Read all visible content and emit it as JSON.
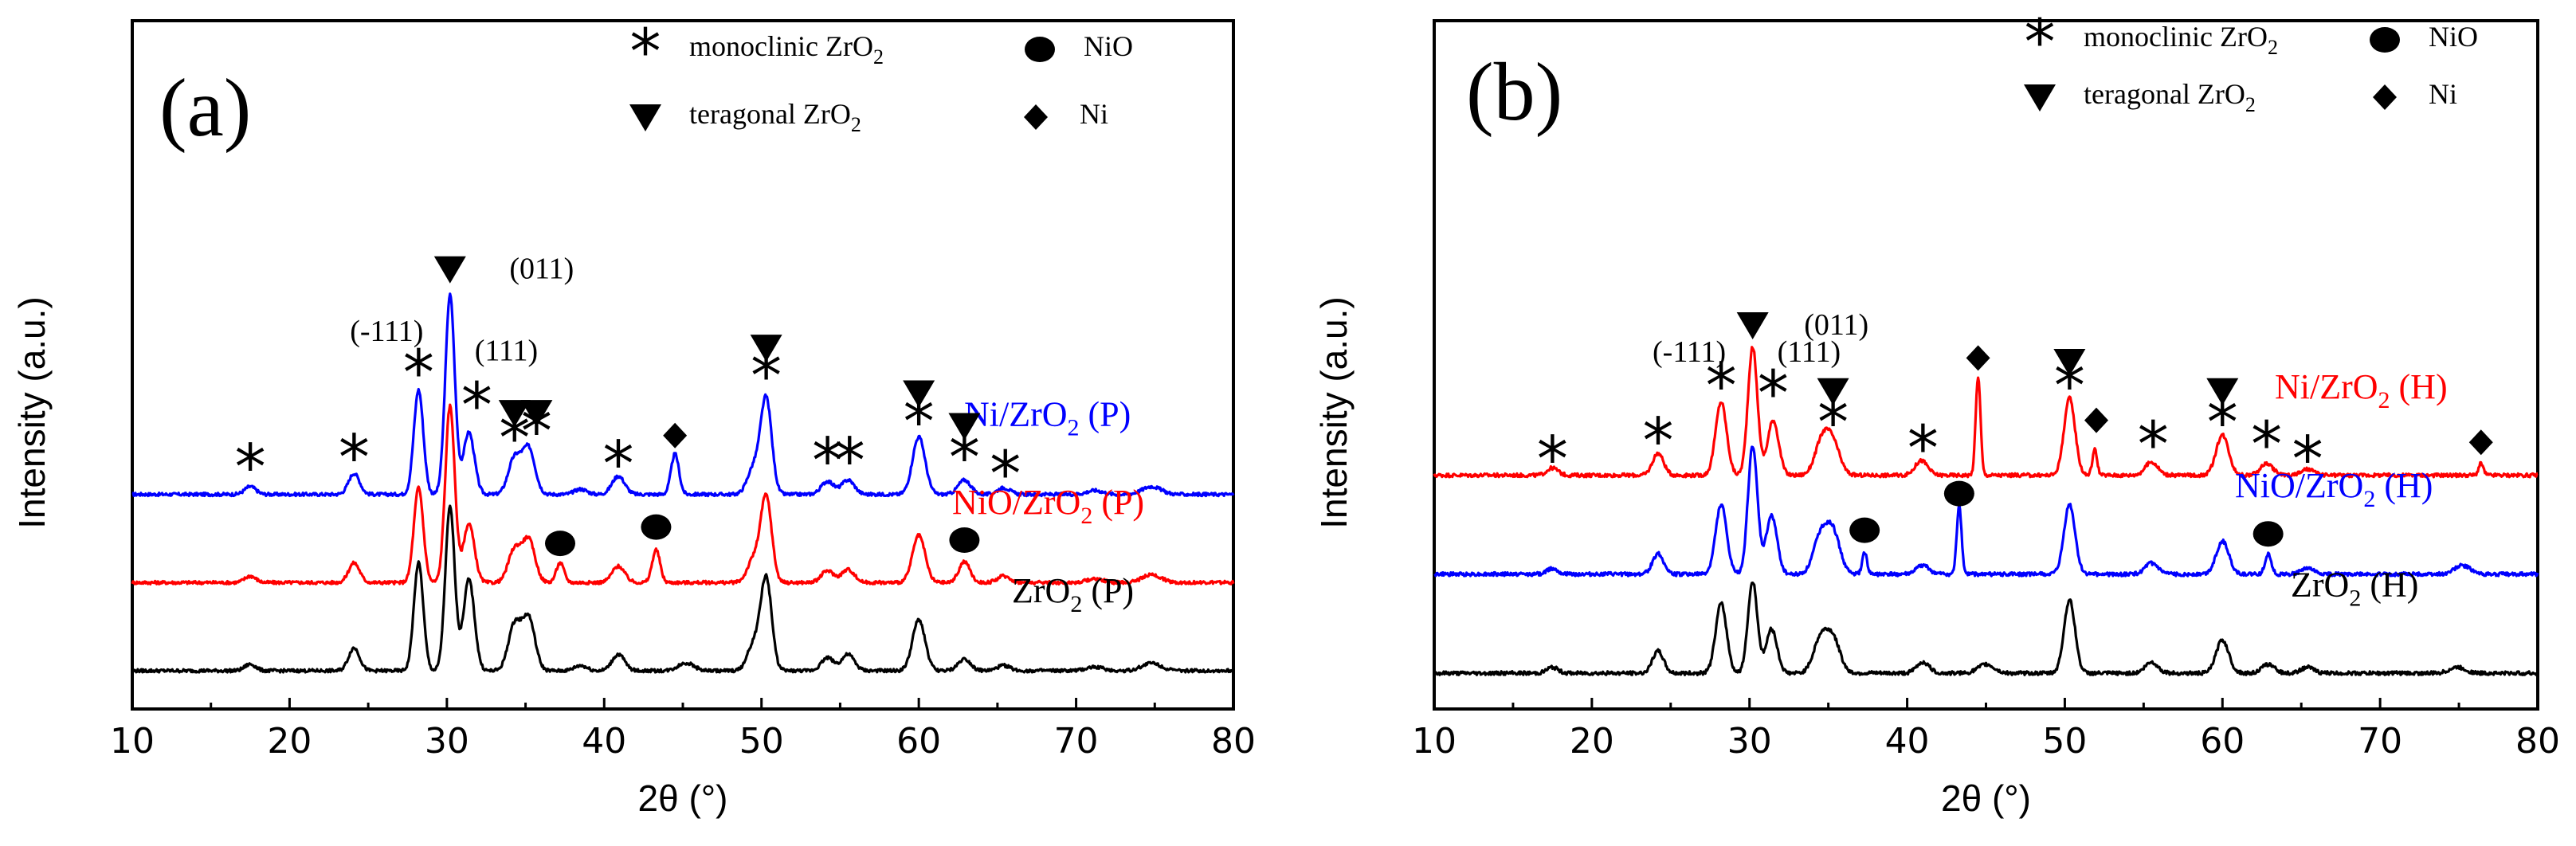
{
  "chart_data": [
    {
      "panel": "(a)",
      "type": "line",
      "xlabel": "2θ (°)",
      "ylabel": "Intensity (a.u.)",
      "xlim": [
        10,
        80
      ],
      "xticks": [
        10,
        20,
        30,
        40,
        50,
        60,
        70,
        80
      ],
      "legend": {
        "entries": [
          {
            "marker": "star",
            "label": "monoclinic ZrO",
            "sub": "2"
          },
          {
            "marker": "circle",
            "label": "NiO",
            "sub": ""
          },
          {
            "marker": "triangle",
            "label": "teragonal ZrO",
            "sub": "2"
          },
          {
            "marker": "diamond",
            "label": "Ni",
            "sub": ""
          }
        ]
      },
      "hkl_labels": [
        {
          "text": "(-111)",
          "x": 28.2
        },
        {
          "text": "(011)",
          "x": 30.2
        },
        {
          "text": "(111)",
          "x": 31.5
        }
      ],
      "series": [
        {
          "name": "Ni/ZrO2 (P)",
          "label": "Ni/ZrO",
          "sub": "2",
          "suffix": " (P)",
          "color": "#0000ff",
          "baseline": 2.7,
          "noise": 0.05,
          "peaks": [
            [
              17.5,
              0.12,
              0.35
            ],
            [
              24.1,
              0.32,
              0.35
            ],
            [
              28.2,
              1.6,
              0.3
            ],
            [
              30.2,
              3.05,
              0.3
            ],
            [
              31.4,
              0.95,
              0.35
            ],
            [
              34.3,
              0.55,
              0.4
            ],
            [
              35.2,
              0.7,
              0.4
            ],
            [
              38.5,
              0.08,
              0.4
            ],
            [
              40.9,
              0.28,
              0.4
            ],
            [
              44.5,
              0.62,
              0.25
            ],
            [
              49.5,
              0.4,
              0.4
            ],
            [
              50.3,
              1.45,
              0.35
            ],
            [
              54.2,
              0.2,
              0.4
            ],
            [
              55.5,
              0.22,
              0.4
            ],
            [
              60.0,
              0.88,
              0.4
            ],
            [
              62.9,
              0.22,
              0.4
            ],
            [
              65.4,
              0.1,
              0.4
            ],
            [
              71.2,
              0.06,
              0.5
            ],
            [
              74.8,
              0.12,
              0.6
            ]
          ],
          "markers": [
            {
              "type": "star",
              "x": 17.5,
              "y": 3.15
            },
            {
              "type": "star",
              "x": 24.1,
              "y": 3.3
            },
            {
              "type": "star",
              "x": 28.2,
              "y": 4.6
            },
            {
              "type": "triangle",
              "x": 30.2,
              "y": 6.15
            },
            {
              "type": "star",
              "x": 31.9,
              "y": 4.1
            },
            {
              "type": "triangle",
              "x": 34.3,
              "y": 3.95
            },
            {
              "type": "triangle",
              "x": 35.7,
              "y": 3.95
            },
            {
              "type": "star",
              "x": 34.3,
              "y": 3.6
            },
            {
              "type": "star",
              "x": 35.7,
              "y": 3.7
            },
            {
              "type": "star",
              "x": 40.9,
              "y": 3.2
            },
            {
              "type": "diamond",
              "x": 44.5,
              "y": 3.6
            },
            {
              "type": "triangle",
              "x": 50.3,
              "y": 4.95
            },
            {
              "type": "star",
              "x": 50.3,
              "y": 4.55
            },
            {
              "type": "star",
              "x": 54.2,
              "y": 3.25
            },
            {
              "type": "star",
              "x": 55.6,
              "y": 3.25
            },
            {
              "type": "triangle",
              "x": 60.0,
              "y": 4.25
            },
            {
              "type": "star",
              "x": 60.0,
              "y": 3.85
            },
            {
              "type": "triangle",
              "x": 62.9,
              "y": 3.75
            },
            {
              "type": "star",
              "x": 62.9,
              "y": 3.3
            },
            {
              "type": "star",
              "x": 65.5,
              "y": 3.05
            }
          ]
        },
        {
          "name": "NiO/ZrO2 (P)",
          "label": "NiO/ZrO",
          "sub": "2",
          "suffix": " (P)",
          "color": "#ff0000",
          "baseline": 1.35,
          "noise": 0.05,
          "peaks": [
            [
              17.5,
              0.1,
              0.35
            ],
            [
              24.1,
              0.3,
              0.35
            ],
            [
              28.2,
              1.45,
              0.3
            ],
            [
              30.2,
              2.7,
              0.3
            ],
            [
              31.4,
              0.9,
              0.35
            ],
            [
              34.3,
              0.5,
              0.4
            ],
            [
              35.2,
              0.65,
              0.4
            ],
            [
              37.2,
              0.3,
              0.25
            ],
            [
              40.9,
              0.25,
              0.4
            ],
            [
              43.3,
              0.5,
              0.25
            ],
            [
              49.5,
              0.35,
              0.4
            ],
            [
              50.3,
              1.3,
              0.35
            ],
            [
              54.2,
              0.18,
              0.4
            ],
            [
              55.5,
              0.2,
              0.4
            ],
            [
              60.0,
              0.72,
              0.4
            ],
            [
              62.9,
              0.32,
              0.35
            ],
            [
              65.4,
              0.1,
              0.4
            ],
            [
              71.2,
              0.06,
              0.5
            ],
            [
              74.8,
              0.12,
              0.6
            ]
          ],
          "markers": [
            {
              "type": "circle",
              "x": 37.2,
              "y": 1.95
            },
            {
              "type": "circle",
              "x": 43.3,
              "y": 2.2
            },
            {
              "type": "circle",
              "x": 62.9,
              "y": 2.0
            }
          ]
        },
        {
          "name": "ZrO2 (P)",
          "label": "ZrO",
          "sub": "2",
          "suffix": " (P)",
          "color": "#000000",
          "baseline": 0.0,
          "noise": 0.05,
          "peaks": [
            [
              17.5,
              0.1,
              0.35
            ],
            [
              24.1,
              0.35,
              0.35
            ],
            [
              28.2,
              1.65,
              0.3
            ],
            [
              30.2,
              2.5,
              0.3
            ],
            [
              31.4,
              1.4,
              0.35
            ],
            [
              34.3,
              0.7,
              0.4
            ],
            [
              35.2,
              0.8,
              0.4
            ],
            [
              38.5,
              0.08,
              0.4
            ],
            [
              40.9,
              0.25,
              0.4
            ],
            [
              45.2,
              0.12,
              0.5
            ],
            [
              49.5,
              0.4,
              0.4
            ],
            [
              50.3,
              1.4,
              0.35
            ],
            [
              54.2,
              0.2,
              0.4
            ],
            [
              55.5,
              0.25,
              0.4
            ],
            [
              60.0,
              0.78,
              0.4
            ],
            [
              62.9,
              0.18,
              0.4
            ],
            [
              65.4,
              0.08,
              0.4
            ],
            [
              71.2,
              0.06,
              0.5
            ],
            [
              74.8,
              0.12,
              0.6
            ]
          ],
          "markers": []
        }
      ]
    },
    {
      "panel": "(b)",
      "type": "line",
      "xlabel": "2θ (°)",
      "ylabel": "Intensity (a.u.)",
      "xlim": [
        10,
        80
      ],
      "xticks": [
        10,
        20,
        30,
        40,
        50,
        60,
        70,
        80
      ],
      "legend": {
        "entries": [
          {
            "marker": "star",
            "label": "monoclinic ZrO",
            "sub": "2"
          },
          {
            "marker": "circle",
            "label": "NiO",
            "sub": ""
          },
          {
            "marker": "triangle",
            "label": "teragonal ZrO",
            "sub": "2"
          },
          {
            "marker": "diamond",
            "label": "Ni",
            "sub": ""
          }
        ]
      },
      "hkl_labels": [
        {
          "text": "(-111)",
          "x": 28.2
        },
        {
          "text": "(011)",
          "x": 30.2
        },
        {
          "text": "(111)",
          "x": 31.5
        }
      ],
      "series": [
        {
          "name": "Ni/ZrO2 (H)",
          "label": "Ni/ZrO",
          "sub": "2",
          "suffix": " (H)",
          "color": "#ff0000",
          "baseline": 2.7,
          "noise": 0.05,
          "peaks": [
            [
              17.5,
              0.1,
              0.35
            ],
            [
              24.2,
              0.3,
              0.35
            ],
            [
              28.2,
              1.0,
              0.35
            ],
            [
              30.2,
              1.75,
              0.3
            ],
            [
              31.5,
              0.75,
              0.35
            ],
            [
              34.6,
              0.45,
              0.45
            ],
            [
              35.3,
              0.4,
              0.45
            ],
            [
              40.9,
              0.2,
              0.4
            ],
            [
              44.5,
              1.35,
              0.15
            ],
            [
              50.3,
              1.05,
              0.35
            ],
            [
              51.9,
              0.35,
              0.15
            ],
            [
              55.5,
              0.18,
              0.4
            ],
            [
              60.0,
              0.55,
              0.4
            ],
            [
              62.8,
              0.16,
              0.4
            ],
            [
              65.4,
              0.08,
              0.4
            ],
            [
              76.4,
              0.16,
              0.15
            ]
          ],
          "markers": [
            {
              "type": "star",
              "x": 17.5,
              "y": 2.95
            },
            {
              "type": "star",
              "x": 24.2,
              "y": 3.2
            },
            {
              "type": "star",
              "x": 28.2,
              "y": 3.95
            },
            {
              "type": "triangle",
              "x": 30.2,
              "y": 4.75
            },
            {
              "type": "star",
              "x": 31.5,
              "y": 3.85
            },
            {
              "type": "triangle",
              "x": 35.3,
              "y": 3.85
            },
            {
              "type": "star",
              "x": 35.3,
              "y": 3.45
            },
            {
              "type": "star",
              "x": 41.0,
              "y": 3.1
            },
            {
              "type": "diamond",
              "x": 44.5,
              "y": 4.3
            },
            {
              "type": "triangle",
              "x": 50.3,
              "y": 4.25
            },
            {
              "type": "star",
              "x": 50.3,
              "y": 3.95
            },
            {
              "type": "diamond",
              "x": 52.0,
              "y": 3.45
            },
            {
              "type": "star",
              "x": 55.6,
              "y": 3.15
            },
            {
              "type": "triangle",
              "x": 60.0,
              "y": 3.85
            },
            {
              "type": "star",
              "x": 60.0,
              "y": 3.45
            },
            {
              "type": "star",
              "x": 62.8,
              "y": 3.15
            },
            {
              "type": "star",
              "x": 65.4,
              "y": 2.95
            },
            {
              "type": "diamond",
              "x": 76.4,
              "y": 3.15
            }
          ]
        },
        {
          "name": "NiO/ZrO2 (H)",
          "label": "NiO/ZrO",
          "sub": "2",
          "suffix": " (H)",
          "color": "#0000ff",
          "baseline": 1.35,
          "noise": 0.05,
          "peaks": [
            [
              17.5,
              0.08,
              0.35
            ],
            [
              24.2,
              0.28,
              0.35
            ],
            [
              28.2,
              0.95,
              0.35
            ],
            [
              30.2,
              1.75,
              0.3
            ],
            [
              31.4,
              0.8,
              0.35
            ],
            [
              34.5,
              0.5,
              0.45
            ],
            [
              35.3,
              0.55,
              0.45
            ],
            [
              37.3,
              0.3,
              0.15
            ],
            [
              41.0,
              0.12,
              0.4
            ],
            [
              43.3,
              0.95,
              0.15
            ],
            [
              50.3,
              0.95,
              0.35
            ],
            [
              55.5,
              0.15,
              0.4
            ],
            [
              60.0,
              0.45,
              0.4
            ],
            [
              62.9,
              0.28,
              0.2
            ],
            [
              65.4,
              0.08,
              0.4
            ],
            [
              75.2,
              0.12,
              0.5
            ]
          ],
          "markers": [
            {
              "type": "circle",
              "x": 37.3,
              "y": 1.95
            },
            {
              "type": "circle",
              "x": 43.3,
              "y": 2.45
            },
            {
              "type": "circle",
              "x": 62.9,
              "y": 1.9
            }
          ]
        },
        {
          "name": "ZrO2 (H)",
          "label": "ZrO",
          "sub": "2",
          "suffix": " (H)",
          "color": "#000000",
          "baseline": 0.0,
          "noise": 0.05,
          "peaks": [
            [
              17.5,
              0.08,
              0.35
            ],
            [
              24.2,
              0.3,
              0.35
            ],
            [
              28.2,
              0.95,
              0.35
            ],
            [
              30.2,
              1.25,
              0.3
            ],
            [
              31.4,
              0.6,
              0.35
            ],
            [
              34.5,
              0.45,
              0.45
            ],
            [
              35.3,
              0.45,
              0.45
            ],
            [
              41.0,
              0.15,
              0.4
            ],
            [
              45.0,
              0.12,
              0.5
            ],
            [
              50.3,
              1.0,
              0.35
            ],
            [
              55.5,
              0.15,
              0.4
            ],
            [
              60.0,
              0.45,
              0.4
            ],
            [
              62.9,
              0.12,
              0.4
            ],
            [
              65.4,
              0.08,
              0.4
            ],
            [
              74.9,
              0.08,
              0.5
            ]
          ],
          "markers": []
        }
      ]
    }
  ]
}
